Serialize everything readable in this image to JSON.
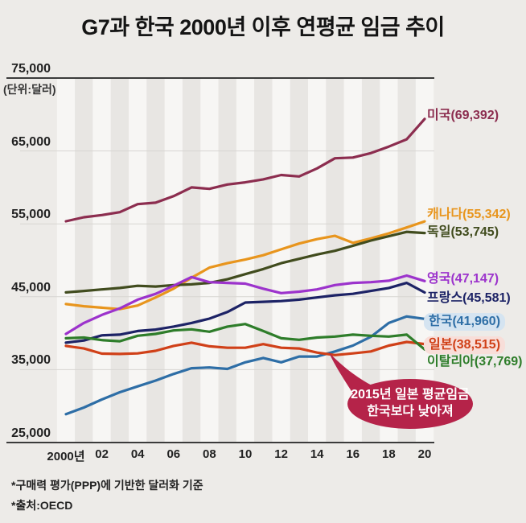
{
  "chart_data": {
    "type": "line",
    "title": "G7과 한국 2000년 이후 연평균 임금 추이",
    "unit_label": "(단위:달러)",
    "x": [
      2000,
      2001,
      2002,
      2003,
      2004,
      2005,
      2006,
      2007,
      2008,
      2009,
      2010,
      2011,
      2012,
      2013,
      2014,
      2015,
      2016,
      2017,
      2018,
      2019,
      2020
    ],
    "x_tick_labels": [
      "2000년",
      "02",
      "04",
      "06",
      "08",
      "10",
      "12",
      "14",
      "16",
      "18",
      "20"
    ],
    "y_tick_labels": [
      "75,000",
      "65,000",
      "55,000",
      "45,000",
      "35,000",
      "25,000"
    ],
    "y_ticks": [
      75000,
      65000,
      55000,
      45000,
      35000,
      25000
    ],
    "ylim": [
      25000,
      75000
    ],
    "grid": "horizontal",
    "legend_position": "right-of-line-ends",
    "series": [
      {
        "name": "미국",
        "label": "미국(69,392)",
        "final_value": 69392,
        "color": "#8c2d4f",
        "values": [
          55350,
          55900,
          56200,
          56600,
          57700,
          57900,
          58800,
          60000,
          59800,
          60400,
          60700,
          61100,
          61700,
          61500,
          62600,
          64000,
          64100,
          64700,
          65600,
          66600,
          69392
        ]
      },
      {
        "name": "캐나다",
        "label": "캐나다(55,342)",
        "final_value": 55342,
        "color": "#e8951d",
        "values": [
          44000,
          43700,
          43500,
          43300,
          43800,
          44900,
          46100,
          47600,
          49000,
          49600,
          50100,
          50700,
          51500,
          52300,
          52900,
          53350,
          52400,
          53000,
          53700,
          54500,
          55342
        ]
      },
      {
        "name": "독일",
        "label": "독일(53,745)",
        "final_value": 53745,
        "color": "#414c1e",
        "values": [
          45600,
          45800,
          46000,
          46200,
          46500,
          46400,
          46600,
          46700,
          46900,
          47400,
          48100,
          48800,
          49600,
          50200,
          50800,
          51300,
          52000,
          52700,
          53300,
          53900,
          53745
        ]
      },
      {
        "name": "영국",
        "label": "영국(47,147)",
        "final_value": 47147,
        "color": "#9c33cc",
        "values": [
          39900,
          41400,
          42500,
          43400,
          44600,
          45400,
          46500,
          47700,
          47000,
          46900,
          46800,
          46100,
          45500,
          45700,
          46000,
          46600,
          46900,
          47000,
          47200,
          47900,
          47147
        ]
      },
      {
        "name": "프랑스",
        "label": "프랑스(45,581)",
        "final_value": 45581,
        "color": "#1d2366",
        "values": [
          38700,
          39000,
          39700,
          39800,
          40300,
          40500,
          40900,
          41400,
          42000,
          42900,
          44200,
          44300,
          44400,
          44600,
          44900,
          45200,
          45400,
          45800,
          46200,
          46900,
          45581
        ]
      },
      {
        "name": "한국",
        "label": "한국(41,960)",
        "final_value": 41960,
        "color": "#2e6ea6",
        "highlight_bg": "#d5e4f1",
        "values": [
          28900,
          29800,
          30900,
          31900,
          32700,
          33500,
          34400,
          35200,
          35300,
          35100,
          36000,
          36600,
          36000,
          36800,
          36800,
          37500,
          38300,
          39500,
          41400,
          42300,
          41960
        ]
      },
      {
        "name": "일본",
        "label": "일본(38,515)",
        "final_value": 38515,
        "color": "#d04018",
        "highlight_bg": "#f8ded9",
        "values": [
          38260,
          37900,
          37200,
          37150,
          37230,
          37580,
          38260,
          38700,
          38200,
          38000,
          38000,
          38500,
          38000,
          37900,
          37340,
          37000,
          37230,
          37500,
          38300,
          38800,
          38515
        ]
      },
      {
        "name": "이탈리아",
        "label": "이탈리아(37,769)",
        "final_value": 37769,
        "color": "#2e7d2a",
        "values": [
          39300,
          39400,
          39050,
          38900,
          39650,
          39900,
          40380,
          40530,
          40200,
          40900,
          41260,
          40300,
          39300,
          39100,
          39400,
          39540,
          39800,
          39650,
          39540,
          39800,
          37769
        ]
      }
    ],
    "annotation": {
      "lines": [
        "2015년 일본 평균임금",
        "한국보다 낮아져"
      ],
      "bubble_color": "#b52349",
      "text_color": "#ffffff",
      "points_to_year": 2015
    },
    "footnotes": [
      "*구매력 평가(PPP)에 기반한 달러화 기준",
      "*출처:OECD"
    ],
    "colors": {
      "page_bg": "#edebe8",
      "stripe_even": "#f7f6f4",
      "stripe_odd": "#e8e6e3",
      "gridline": "#d7d5d2",
      "axis_line": "#3b3b3b",
      "title_text": "#141414"
    }
  }
}
